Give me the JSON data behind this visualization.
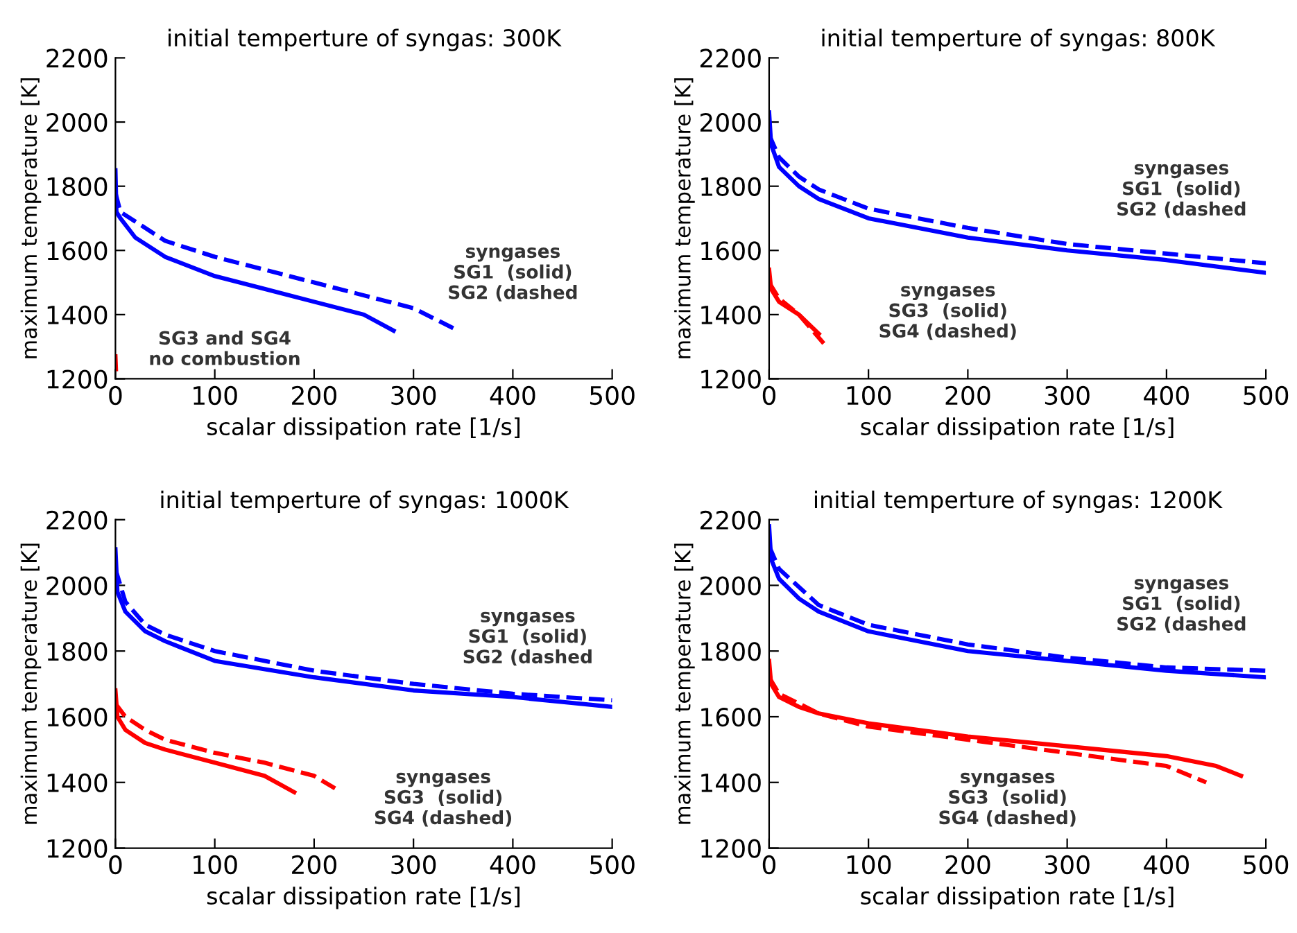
{
  "chart_data": [
    {
      "type": "line",
      "title": "initial temperture of syngas: 300K",
      "xlabel": "scalar dissipation rate [1/s]",
      "ylabel": "maximum temperature [K]",
      "xlim": [
        0,
        500
      ],
      "ylim": [
        1200,
        2200
      ],
      "xticks": [
        0,
        100,
        200,
        300,
        400,
        500
      ],
      "yticks": [
        1200,
        1400,
        1600,
        1800,
        2000,
        2200
      ],
      "grid": false,
      "annotations": [
        "syngases\nSG1  (solid)\nSG2 (dashed",
        "SG3 and SG4\nno combustion"
      ],
      "series": [
        {
          "color": "#0000ff",
          "line_style": "solid",
          "x": [
            0,
            1,
            5,
            20,
            50,
            100,
            150,
            200,
            250,
            280
          ],
          "values": [
            1850,
            1720,
            1700,
            1640,
            1580,
            1520,
            1480,
            1440,
            1400,
            1350
          ]
        },
        {
          "color": "#0000ff",
          "line_style": "dashed",
          "x": [
            0,
            5,
            20,
            50,
            100,
            150,
            200,
            250,
            300,
            345
          ],
          "values": [
            1780,
            1720,
            1690,
            1630,
            1580,
            1540,
            1500,
            1460,
            1420,
            1350
          ]
        },
        {
          "color": "#ff0000",
          "line_style": "solid",
          "x": [
            0,
            0.5
          ],
          "values": [
            1270,
            1230
          ]
        }
      ]
    },
    {
      "type": "line",
      "title": "initial temperture of syngas: 800K",
      "xlabel": "scalar dissipation rate [1/s]",
      "ylabel": "maximum temperature [K]",
      "xlim": [
        0,
        500
      ],
      "ylim": [
        1200,
        2200
      ],
      "xticks": [
        0,
        100,
        200,
        300,
        400,
        500
      ],
      "yticks": [
        1200,
        1400,
        1600,
        1800,
        2000,
        2200
      ],
      "grid": false,
      "annotations": [
        "syngases\nSG1  (solid)\nSG2 (dashed",
        "syngases\nSG3  (solid)\nSG4 (dashed)"
      ],
      "series": [
        {
          "color": "#0000ff",
          "line_style": "solid",
          "x": [
            0,
            2,
            10,
            30,
            50,
            100,
            200,
            300,
            400,
            500
          ],
          "values": [
            2030,
            1930,
            1860,
            1800,
            1760,
            1700,
            1640,
            1600,
            1570,
            1530
          ]
        },
        {
          "color": "#0000ff",
          "line_style": "dashed",
          "x": [
            0,
            10,
            30,
            50,
            100,
            200,
            300,
            400,
            500
          ],
          "values": [
            1960,
            1890,
            1830,
            1790,
            1730,
            1670,
            1620,
            1590,
            1560
          ]
        },
        {
          "color": "#ff0000",
          "line_style": "solid",
          "x": [
            0,
            2,
            10,
            30,
            50
          ],
          "values": [
            1540,
            1480,
            1440,
            1400,
            1340
          ]
        },
        {
          "color": "#ff0000",
          "line_style": "dashed",
          "x": [
            0,
            10,
            30,
            55
          ],
          "values": [
            1500,
            1450,
            1400,
            1310
          ]
        }
      ]
    },
    {
      "type": "line",
      "title": "initial temperture of syngas: 1000K",
      "xlabel": "scalar dissipation rate [1/s]",
      "ylabel": "maximum temperature [K]",
      "xlim": [
        0,
        500
      ],
      "ylim": [
        1200,
        2200
      ],
      "xticks": [
        0,
        100,
        200,
        300,
        400,
        500
      ],
      "yticks": [
        1200,
        1400,
        1600,
        1800,
        2000,
        2200
      ],
      "grid": false,
      "annotations": [
        "syngases\nSG1  (solid)\nSG2 (dashed",
        "syngases\nSG3  (solid)\nSG4 (dashed)"
      ],
      "series": [
        {
          "color": "#0000ff",
          "line_style": "solid",
          "x": [
            0,
            2,
            10,
            30,
            50,
            100,
            200,
            300,
            400,
            500
          ],
          "values": [
            2110,
            1980,
            1920,
            1860,
            1830,
            1770,
            1720,
            1680,
            1660,
            1630
          ]
        },
        {
          "color": "#0000ff",
          "line_style": "dashed",
          "x": [
            0,
            10,
            30,
            50,
            100,
            200,
            300,
            400,
            500
          ],
          "values": [
            2050,
            1950,
            1880,
            1850,
            1800,
            1740,
            1700,
            1670,
            1650
          ]
        },
        {
          "color": "#ff0000",
          "line_style": "solid",
          "x": [
            0,
            2,
            10,
            30,
            50,
            100,
            150,
            180
          ],
          "values": [
            1680,
            1600,
            1560,
            1520,
            1500,
            1460,
            1420,
            1370
          ]
        },
        {
          "color": "#ff0000",
          "line_style": "dashed",
          "x": [
            0,
            10,
            30,
            50,
            100,
            150,
            200,
            222
          ],
          "values": [
            1640,
            1600,
            1560,
            1530,
            1490,
            1460,
            1420,
            1380
          ]
        }
      ]
    },
    {
      "type": "line",
      "title": "initial temperture of syngas: 1200K",
      "xlabel": "scalar dissipation rate [1/s]",
      "ylabel": "maximum temperature [K]",
      "xlim": [
        0,
        500
      ],
      "ylim": [
        1200,
        2200
      ],
      "xticks": [
        0,
        100,
        200,
        300,
        400,
        500
      ],
      "yticks": [
        1200,
        1400,
        1600,
        1800,
        2000,
        2200
      ],
      "grid": false,
      "annotations": [
        "syngases\nSG1  (solid)\nSG2 (dashed",
        "syngases\nSG3  (solid)\nSG4 (dashed)"
      ],
      "series": [
        {
          "color": "#0000ff",
          "line_style": "solid",
          "x": [
            0,
            2,
            10,
            30,
            50,
            100,
            200,
            300,
            400,
            500
          ],
          "values": [
            2180,
            2080,
            2020,
            1960,
            1920,
            1860,
            1800,
            1770,
            1740,
            1720
          ]
        },
        {
          "color": "#0000ff",
          "line_style": "dashed",
          "x": [
            0,
            10,
            50,
            100,
            200,
            300,
            400,
            500
          ],
          "values": [
            2120,
            2050,
            1940,
            1880,
            1820,
            1780,
            1750,
            1740
          ]
        },
        {
          "color": "#ff0000",
          "line_style": "solid",
          "x": [
            0,
            2,
            10,
            30,
            50,
            100,
            200,
            300,
            400,
            450,
            475
          ],
          "values": [
            1770,
            1700,
            1660,
            1630,
            1610,
            1580,
            1540,
            1510,
            1480,
            1450,
            1420
          ]
        },
        {
          "color": "#ff0000",
          "line_style": "dashed",
          "x": [
            0,
            10,
            50,
            100,
            200,
            300,
            400,
            440
          ],
          "values": [
            1720,
            1670,
            1610,
            1570,
            1530,
            1490,
            1450,
            1400
          ]
        }
      ]
    }
  ]
}
